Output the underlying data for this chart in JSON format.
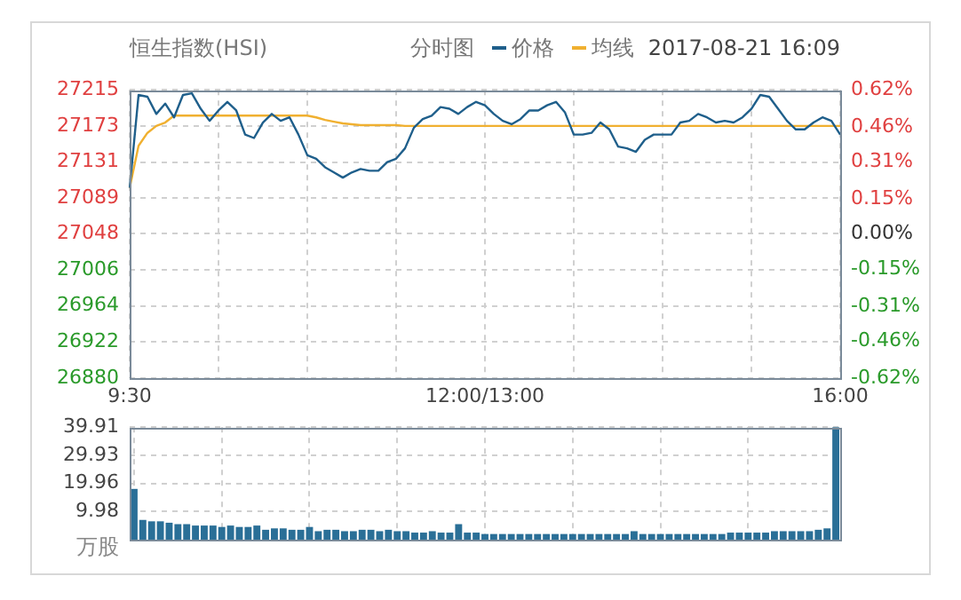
{
  "chart_data": [
    {
      "type": "line",
      "title": "恒生指数(HSI)",
      "legend_title": "分时图",
      "annotations": [
        "2017-08-21 16:09"
      ],
      "categories": [
        "9:30",
        null,
        null,
        null,
        null,
        null,
        null,
        null,
        null,
        null,
        null,
        null,
        null,
        null,
        null,
        null,
        null,
        null,
        null,
        null,
        null,
        null,
        null,
        null,
        null,
        null,
        null,
        null,
        null,
        null,
        null,
        null,
        null,
        null,
        null,
        null,
        null,
        null,
        null,
        null,
        "12:00/13:00",
        null,
        null,
        null,
        null,
        null,
        null,
        null,
        null,
        null,
        null,
        null,
        null,
        null,
        null,
        null,
        null,
        null,
        null,
        null,
        null,
        null,
        null,
        null,
        null,
        null,
        null,
        null,
        null,
        null,
        null,
        null,
        null,
        null,
        null,
        null,
        null,
        null,
        null,
        null,
        "16:00"
      ],
      "series": [
        {
          "name": "价格",
          "color": "#1f5f8b",
          "values": [
            27101,
            27209,
            27207,
            27187,
            27199,
            27183,
            27209,
            27211,
            27193,
            27179,
            27191,
            27201,
            27191,
            27163,
            27159,
            27177,
            27187,
            27179,
            27183,
            27163,
            27139,
            27135,
            27125,
            27119,
            27113,
            27119,
            27123,
            27121,
            27121,
            27131,
            27135,
            27147,
            27171,
            27181,
            27185,
            27195,
            27193,
            27187,
            27195,
            27201,
            27197,
            27187,
            27179,
            27175,
            27181,
            27191,
            27191,
            27197,
            27201,
            27189,
            27163,
            27163,
            27165,
            27177,
            27169,
            27149,
            27147,
            27143,
            27157,
            27163,
            27163,
            27163,
            27177,
            27179,
            27187,
            27183,
            27177,
            27179,
            27177,
            27183,
            27193,
            27209,
            27207,
            27193,
            27179,
            27169,
            27169,
            27177,
            27183,
            27179,
            27163
          ]
        },
        {
          "name": "均线",
          "color": "#f0b030",
          "values": [
            27101,
            27150,
            27165,
            27173,
            27177,
            27185,
            27185,
            27185,
            27185,
            27185,
            27185,
            27185,
            27185,
            27185,
            27185,
            27185,
            27185,
            27185,
            27185,
            27185,
            27185,
            27183,
            27180,
            27178,
            27176,
            27175,
            27174,
            27174,
            27174,
            27174,
            27174,
            27173,
            27173,
            27173,
            27173,
            27173,
            27173,
            27173,
            27173,
            27173,
            27173,
            27173,
            27173,
            27173,
            27173,
            27173,
            27173,
            27173,
            27173,
            27173,
            27173,
            27173,
            27173,
            27173,
            27173,
            27173,
            27173,
            27173,
            27173,
            27173,
            27173,
            27173,
            27173,
            27173,
            27173,
            27173,
            27173,
            27173,
            27173,
            27173,
            27173,
            27173,
            27173,
            27173,
            27173,
            27173,
            27173,
            27173,
            27173,
            27173,
            27173
          ]
        }
      ],
      "ylim": [
        26880,
        27215
      ],
      "yticks": [
        26880,
        26922,
        26964,
        27006,
        27048,
        27089,
        27131,
        27173,
        27215
      ],
      "y2lim": [
        -0.62,
        0.62
      ],
      "y2ticks": [
        {
          "value": -0.62,
          "label": "-0.62%"
        },
        {
          "value": -0.46,
          "label": "-0.46%"
        },
        {
          "value": -0.31,
          "label": "-0.31%"
        },
        {
          "value": -0.15,
          "label": "-0.15%"
        },
        {
          "value": 0,
          "label": "0.00%"
        },
        {
          "value": 0.15,
          "label": "0.15%"
        },
        {
          "value": 0.31,
          "label": "0.31%"
        },
        {
          "value": 0.46,
          "label": "0.46%"
        },
        {
          "value": 0.62,
          "label": "0.62%"
        }
      ],
      "grid": true,
      "legend": "top right",
      "marker": "none",
      "line_style": "solid"
    },
    {
      "type": "bar",
      "ylabel": "万股",
      "color": "#2a6f97",
      "tick_labels": "y",
      "categories": [
        null,
        null,
        null,
        null,
        null,
        null,
        null,
        null,
        null,
        null,
        null,
        null,
        null,
        null,
        null,
        null,
        null,
        null,
        null,
        null,
        null,
        null,
        null,
        null,
        null,
        null,
        null,
        null,
        null,
        null,
        null,
        null,
        null,
        null,
        null,
        null,
        null,
        null,
        null,
        null,
        null,
        null,
        null,
        null,
        null,
        null,
        null,
        null,
        null,
        null,
        null,
        null,
        null,
        null,
        null,
        null,
        null,
        null,
        null,
        null,
        null,
        null,
        null,
        null,
        null,
        null,
        null,
        null,
        null,
        null,
        null,
        null,
        null,
        null,
        null,
        null,
        null,
        null,
        null,
        null,
        null
      ],
      "values": [
        18,
        7,
        6.5,
        6.5,
        6,
        5.5,
        5.5,
        5,
        5,
        5,
        4.5,
        5,
        4.5,
        4.5,
        5,
        3.5,
        4,
        4,
        3.5,
        3.5,
        4.5,
        3,
        3.5,
        3.5,
        3,
        3,
        3.5,
        3.5,
        3,
        3.5,
        3,
        3,
        2.5,
        2.5,
        3,
        2.5,
        2.5,
        5.5,
        2.5,
        2.5,
        2,
        2,
        2,
        2,
        2,
        2,
        2,
        2,
        2,
        2,
        2,
        2,
        2,
        2,
        2,
        2,
        2,
        3,
        2,
        2,
        2,
        2,
        2,
        2,
        2,
        2,
        2,
        2,
        2.5,
        2.5,
        2.5,
        2.5,
        2.5,
        3,
        3,
        3,
        3,
        3,
        3.5,
        4,
        39.91
      ],
      "ylim": [
        0,
        39.91
      ],
      "yticks": [
        9.98,
        19.96,
        29.93,
        39.91
      ],
      "grid": true
    }
  ]
}
